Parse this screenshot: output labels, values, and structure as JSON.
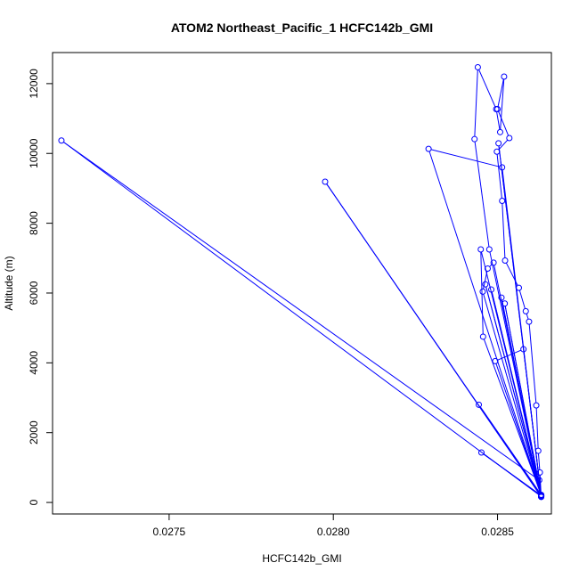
{
  "chart_data": {
    "type": "line",
    "title": "ATOM2 Northeast_Pacific_1 HCFC142b_GMI",
    "xlabel": "HCFC142b_GMI",
    "ylabel": "Altitude (m)",
    "xlim": [
      0.027145,
      0.028664
    ],
    "ylim": [
      -330,
      12890
    ],
    "x_ticks": [
      0.0275,
      0.028,
      0.0285
    ],
    "x_tick_labels": [
      "0.0275",
      "0.0280",
      "0.0285"
    ],
    "y_ticks": [
      0,
      2000,
      4000,
      6000,
      8000,
      10000,
      12000
    ],
    "y_tick_labels": [
      "0",
      "2000",
      "4000",
      "6000",
      "8000",
      "10000",
      "12000"
    ],
    "marker": "open-circle",
    "grid": false,
    "legend": "none",
    "series": [
      {
        "color": "#0000ff",
        "points": [
          [
            0.028633,
            160
          ],
          [
            0.028629,
            860
          ],
          [
            0.028624,
            1480
          ],
          [
            0.028618,
            2780
          ],
          [
            0.028596,
            5180
          ],
          [
            0.028586,
            5480
          ],
          [
            0.028565,
            6150
          ],
          [
            0.028523,
            6930
          ],
          [
            0.028514,
            8640
          ],
          [
            0.028498,
            10050
          ],
          [
            0.028536,
            10440
          ],
          [
            0.0285,
            11270
          ],
          [
            0.02852,
            12200
          ],
          [
            0.028508,
            10610
          ],
          [
            0.028496,
            11270
          ],
          [
            0.02844,
            12470
          ],
          [
            0.02843,
            10410
          ],
          [
            0.028475,
            7250
          ],
          [
            0.028633,
            200
          ],
          [
            0.028488,
            6870
          ],
          [
            0.02847,
            6700
          ],
          [
            0.028455,
            6040
          ],
          [
            0.028633,
            180
          ],
          [
            0.028627,
            640
          ],
          [
            0.027172,
            10370
          ],
          [
            0.028633,
            170
          ],
          [
            0.028579,
            4390
          ],
          [
            0.028493,
            4050
          ],
          [
            0.028633,
            190
          ],
          [
            0.028449,
            7250
          ],
          [
            0.028456,
            4750
          ],
          [
            0.028633,
            220
          ],
          [
            0.028443,
            2800
          ],
          [
            0.028633,
            210
          ],
          [
            0.028481,
            6100
          ],
          [
            0.028633,
            200
          ],
          [
            0.028451,
            1430
          ],
          [
            0.028633,
            200
          ],
          [
            0.02829,
            10130
          ],
          [
            0.028514,
            9600
          ],
          [
            0.028633,
            160
          ],
          [
            0.027975,
            9190
          ],
          [
            0.028633,
            180
          ],
          [
            0.028522,
            5700
          ],
          [
            0.028633,
            200
          ],
          [
            0.028503,
            10290
          ],
          [
            0.028633,
            190
          ],
          [
            0.028463,
            6250
          ],
          [
            0.028633,
            200
          ],
          [
            0.028512,
            5870
          ],
          [
            0.028633,
            160
          ]
        ]
      }
    ]
  }
}
